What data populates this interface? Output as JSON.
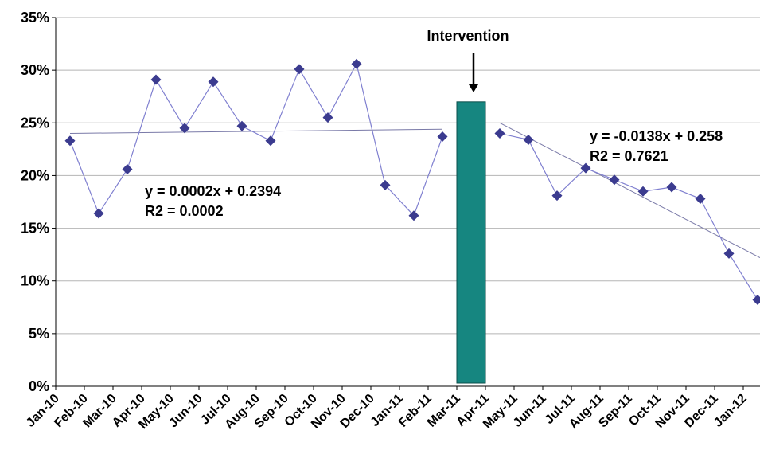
{
  "chart_data": {
    "type": "line",
    "categories": [
      "Jan-10",
      "Feb-10",
      "Mar-10",
      "Apr-10",
      "May-10",
      "Jun-10",
      "Jul-10",
      "Aug-10",
      "Sep-10",
      "Oct-10",
      "Nov-10",
      "Dec-10",
      "Jan-11",
      "Feb-11",
      "Mar-11",
      "Apr-11",
      "May-11",
      "Jun-11",
      "Jul-11",
      "Aug-11",
      "Sep-11",
      "Oct-11",
      "Nov-11",
      "Dec-11",
      "Jan-12"
    ],
    "ylim": [
      0,
      0.35
    ],
    "yticks": [
      "0%",
      "5%",
      "10%",
      "15%",
      "20%",
      "25%",
      "30%",
      "35%"
    ],
    "grid": true,
    "series": [
      {
        "values": [
          0.233,
          0.164,
          0.206,
          0.291,
          0.245,
          0.289,
          0.247,
          0.233,
          0.301,
          0.255,
          0.306,
          0.191,
          0.162,
          0.237,
          null,
          0.24,
          0.234,
          0.181,
          0.207,
          0.196,
          0.185,
          0.189,
          0.178,
          0.126,
          0.082
        ],
        "color": "#3b3b8f"
      }
    ],
    "intervention": {
      "label": "Intervention",
      "top_value": 0.27,
      "color": "#168680"
    },
    "trendlines": [
      {
        "start": 0.24,
        "end": 0.244,
        "equation": "y = 0.0002x + 0.2394",
        "r2": "R2 = 0.0002"
      },
      {
        "start": 0.25,
        "end": 0.122,
        "equation": "y = -0.0138x + 0.258",
        "r2": "R2 = 0.7621"
      }
    ]
  }
}
